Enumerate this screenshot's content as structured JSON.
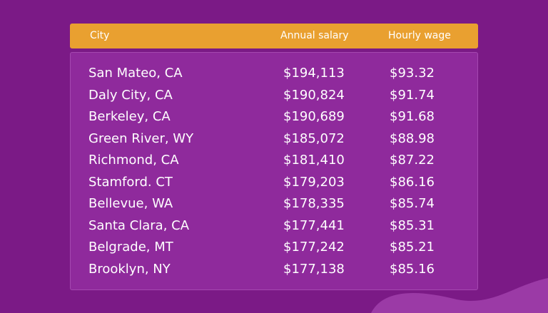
{
  "table": {
    "header": [
      "City",
      "Annual salary",
      "Hourly wage"
    ],
    "rows": [
      [
        "San Mateo, CA",
        "$194,113",
        "$93.32"
      ],
      [
        "Daly City, CA",
        "$190,824",
        "$91.74"
      ],
      [
        "Berkeley, CA",
        "$190,689",
        "$91.68"
      ],
      [
        "Green River, WY",
        "$185,072",
        "$88.98"
      ],
      [
        "Richmond, CA",
        "$181,410",
        "$87.22"
      ],
      [
        "Stamford. CT",
        "$179,203",
        "$86.16"
      ],
      [
        "Bellevue, WA",
        "$178,335",
        "$85.74"
      ],
      [
        "Santa Clara, CA",
        "$177,441",
        "$85.31"
      ],
      [
        "Belgrade, MT",
        "$177,242",
        "$85.21"
      ],
      [
        "Brooklyn, NY",
        "$177,138",
        "$85.16"
      ]
    ]
  }
}
